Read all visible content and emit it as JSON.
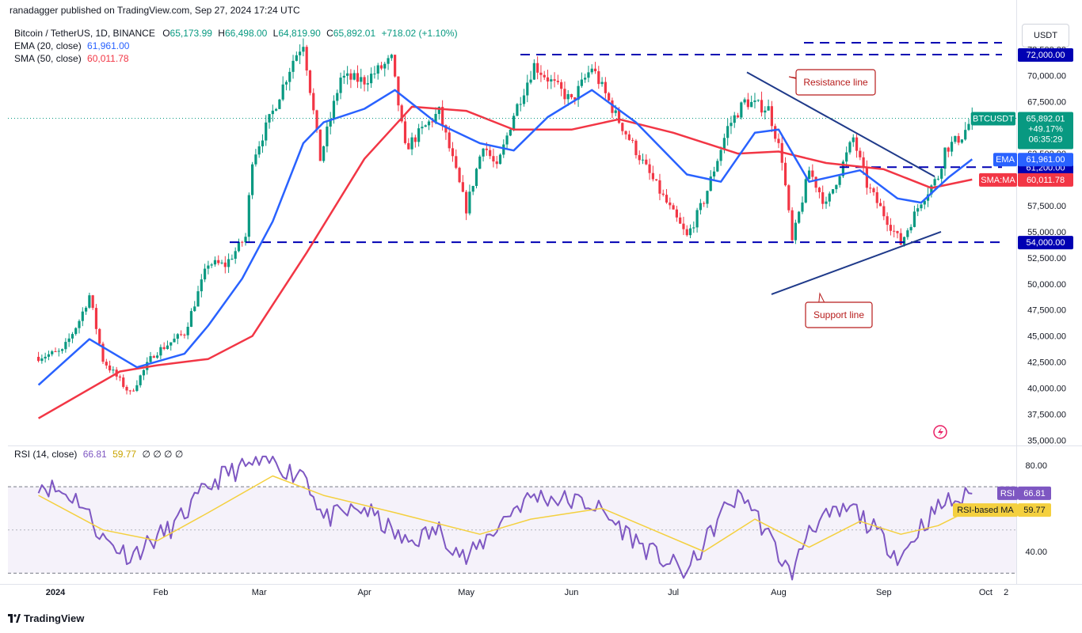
{
  "header": {
    "publisher": "ranadagger published on TradingView.com, Sep 27, 2024 17:24 UTC"
  },
  "legend": {
    "symbol": "Bitcoin / TetherUS, 1D, BINANCE",
    "o_label": "O",
    "o_value": "65,173.99",
    "h_label": "H",
    "h_value": "66,498.00",
    "l_label": "L",
    "l_value": "64,819.90",
    "c_label": "C",
    "c_value": "65,892.01",
    "change": "+718.02 (+1.10%)",
    "ema_label": "EMA (20, close)",
    "ema_value": "61,961.00",
    "sma_label": "SMA (50, close)",
    "sma_value": "60,011.78"
  },
  "rsi_legend": {
    "label": "RSI (14, close)",
    "rsi_value": "66.81",
    "ma_value": "59.77",
    "extra": "∅ ∅ ∅ ∅"
  },
  "currency": "USDT",
  "brand": "TradingView",
  "colors": {
    "up": "#089981",
    "down": "#f23645",
    "ema": "#2962ff",
    "sma": "#f23645",
    "rsi": "#7e57c2",
    "rsi_ma": "#f4d03f",
    "line": "#0000b3"
  },
  "chart_data": {
    "type": "candlestick",
    "symbol": "BTCUSDT",
    "x_ticks": [
      "2024",
      "Feb",
      "Mar",
      "Apr",
      "May",
      "Jun",
      "Jul",
      "Aug",
      "Sep",
      "Oct",
      "2"
    ],
    "y_ticks": [
      "35,000.00",
      "37,500.00",
      "40,000.00",
      "42,500.00",
      "45,000.00",
      "47,500.00",
      "50,000.00",
      "52,500.00",
      "55,000.00",
      "57,500.00",
      "60,000.00",
      "62,500.00",
      "65,000.00",
      "67,500.00",
      "70,000.00",
      "72,500.00"
    ],
    "ylim": [
      34500,
      74200
    ],
    "price_marker": {
      "name": "BTCUSDT",
      "price": "65,892.01",
      "change": "+49.17%",
      "countdown": "06:35:29"
    },
    "ema_marker": {
      "name": "EMA",
      "value": "61,961.00"
    },
    "sma_marker": {
      "name": "SMA:MA",
      "value": "60,011.78"
    },
    "level_labels": [
      "72,000.00",
      "61,200.00",
      "54,000.00"
    ],
    "levels": [
      72000,
      61200,
      54000
    ],
    "annotations": [
      "Resistance line",
      "Support line"
    ],
    "price_path": [
      [
        "2023-12-27",
        43000
      ],
      [
        "2024-01-03",
        43500
      ],
      [
        "2024-01-08",
        46500
      ],
      [
        "2024-01-11",
        48900
      ],
      [
        "2024-01-15",
        42700
      ],
      [
        "2024-01-23",
        39500
      ],
      [
        "2024-01-30",
        43300
      ],
      [
        "2024-02-08",
        45300
      ],
      [
        "2024-02-15",
        52000
      ],
      [
        "2024-02-20",
        51800
      ],
      [
        "2024-02-26",
        54500
      ],
      [
        "2024-02-28",
        62000
      ],
      [
        "2024-03-05",
        66500
      ],
      [
        "2024-03-11",
        71500
      ],
      [
        "2024-03-14",
        73200
      ],
      [
        "2024-03-19",
        62000
      ],
      [
        "2024-03-25",
        69800
      ],
      [
        "2024-04-01",
        69500
      ],
      [
        "2024-04-09",
        71500
      ],
      [
        "2024-04-13",
        63000
      ],
      [
        "2024-04-23",
        66500
      ],
      [
        "2024-05-01",
        57200
      ],
      [
        "2024-05-06",
        63500
      ],
      [
        "2024-05-10",
        61000
      ],
      [
        "2024-05-15",
        66300
      ],
      [
        "2024-05-21",
        71000
      ],
      [
        "2024-06-01",
        67500
      ],
      [
        "2024-06-07",
        70800
      ],
      [
        "2024-06-14",
        66200
      ],
      [
        "2024-06-24",
        60500
      ],
      [
        "2024-07-05",
        54500
      ],
      [
        "2024-07-10",
        58000
      ],
      [
        "2024-07-17",
        65000
      ],
      [
        "2024-07-22",
        67500
      ],
      [
        "2024-07-29",
        66800
      ],
      [
        "2024-08-02",
        62000
      ],
      [
        "2024-08-05",
        54000
      ],
      [
        "2024-08-10",
        60900
      ],
      [
        "2024-08-15",
        57500
      ],
      [
        "2024-08-23",
        64000
      ],
      [
        "2024-08-27",
        59500
      ],
      [
        "2024-09-06",
        53900
      ],
      [
        "2024-09-12",
        58000
      ],
      [
        "2024-09-17",
        60300
      ],
      [
        "2024-09-19",
        62900
      ],
      [
        "2024-09-24",
        64200
      ],
      [
        "2024-09-27",
        65892
      ]
    ],
    "ema_path": [
      [
        "2023-12-27",
        40300
      ],
      [
        "2024-01-11",
        44700
      ],
      [
        "2024-01-25",
        42000
      ],
      [
        "2024-02-08",
        43300
      ],
      [
        "2024-02-15",
        46000
      ],
      [
        "2024-02-25",
        50500
      ],
      [
        "2024-03-05",
        56000
      ],
      [
        "2024-03-14",
        63500
      ],
      [
        "2024-03-20",
        65500
      ],
      [
        "2024-04-01",
        66800
      ],
      [
        "2024-04-10",
        68600
      ],
      [
        "2024-04-22",
        65500
      ],
      [
        "2024-05-05",
        63500
      ],
      [
        "2024-05-15",
        62800
      ],
      [
        "2024-05-25",
        66000
      ],
      [
        "2024-06-07",
        68600
      ],
      [
        "2024-06-20",
        65500
      ],
      [
        "2024-07-05",
        60500
      ],
      [
        "2024-07-15",
        59800
      ],
      [
        "2024-07-25",
        64500
      ],
      [
        "2024-08-01",
        64800
      ],
      [
        "2024-08-10",
        59800
      ],
      [
        "2024-08-25",
        60900
      ],
      [
        "2024-09-05",
        58200
      ],
      [
        "2024-09-12",
        57800
      ],
      [
        "2024-09-20",
        60200
      ],
      [
        "2024-09-27",
        61961
      ]
    ],
    "sma_path": [
      [
        "2023-12-27",
        37100
      ],
      [
        "2024-01-20",
        41600
      ],
      [
        "2024-01-31",
        42200
      ],
      [
        "2024-02-15",
        42800
      ],
      [
        "2024-02-28",
        45000
      ],
      [
        "2024-03-15",
        53000
      ],
      [
        "2024-04-01",
        62000
      ],
      [
        "2024-04-15",
        67000
      ],
      [
        "2024-05-01",
        66600
      ],
      [
        "2024-05-15",
        64800
      ],
      [
        "2024-06-01",
        64800
      ],
      [
        "2024-06-15",
        65800
      ],
      [
        "2024-07-01",
        64500
      ],
      [
        "2024-07-20",
        62500
      ],
      [
        "2024-08-01",
        62700
      ],
      [
        "2024-08-15",
        61600
      ],
      [
        "2024-09-01",
        61000
      ],
      [
        "2024-09-15",
        59200
      ],
      [
        "2024-09-27",
        60012
      ]
    ],
    "rsi": {
      "y_ticks": [
        "80.00",
        "40.00"
      ],
      "ylim": [
        25,
        88
      ],
      "bands": [
        70,
        30
      ],
      "rsi_marker": {
        "name": "RSI",
        "value": "66.81"
      },
      "ma_marker": {
        "name": "RSI-based MA",
        "value": "59.77"
      },
      "path": [
        [
          "2023-12-27",
          72
        ],
        [
          "2024-01-08",
          64
        ],
        [
          "2024-01-15",
          46
        ],
        [
          "2024-01-23",
          38
        ],
        [
          "2024-02-05",
          52
        ],
        [
          "2024-02-15",
          70
        ],
        [
          "2024-02-20",
          76
        ],
        [
          "2024-02-28",
          80
        ],
        [
          "2024-03-05",
          82
        ],
        [
          "2024-03-11",
          76
        ],
        [
          "2024-03-14",
          78
        ],
        [
          "2024-03-20",
          55
        ],
        [
          "2024-04-01",
          60
        ],
        [
          "2024-04-13",
          44
        ],
        [
          "2024-04-23",
          50
        ],
        [
          "2024-05-01",
          36
        ],
        [
          "2024-05-15",
          60
        ],
        [
          "2024-05-21",
          66
        ],
        [
          "2024-06-07",
          62
        ],
        [
          "2024-06-24",
          40
        ],
        [
          "2024-07-05",
          30
        ],
        [
          "2024-07-17",
          62
        ],
        [
          "2024-07-22",
          66
        ],
        [
          "2024-08-05",
          28
        ],
        [
          "2024-08-10",
          52
        ],
        [
          "2024-08-23",
          60
        ],
        [
          "2024-09-06",
          37
        ],
        [
          "2024-09-12",
          52
        ],
        [
          "2024-09-19",
          63
        ],
        [
          "2024-09-24",
          64
        ],
        [
          "2024-09-27",
          66.81
        ]
      ],
      "ma_path": [
        [
          "2023-12-27",
          66
        ],
        [
          "2024-01-15",
          50
        ],
        [
          "2024-01-31",
          45
        ],
        [
          "2024-02-15",
          58
        ],
        [
          "2024-03-05",
          75
        ],
        [
          "2024-03-20",
          66
        ],
        [
          "2024-04-10",
          58
        ],
        [
          "2024-05-05",
          48
        ],
        [
          "2024-05-20",
          55
        ],
        [
          "2024-06-10",
          60
        ],
        [
          "2024-06-25",
          50
        ],
        [
          "2024-07-10",
          40
        ],
        [
          "2024-07-25",
          55
        ],
        [
          "2024-08-10",
          42
        ],
        [
          "2024-08-25",
          54
        ],
        [
          "2024-09-06",
          48
        ],
        [
          "2024-09-17",
          52
        ],
        [
          "2024-09-27",
          59.77
        ]
      ]
    }
  }
}
